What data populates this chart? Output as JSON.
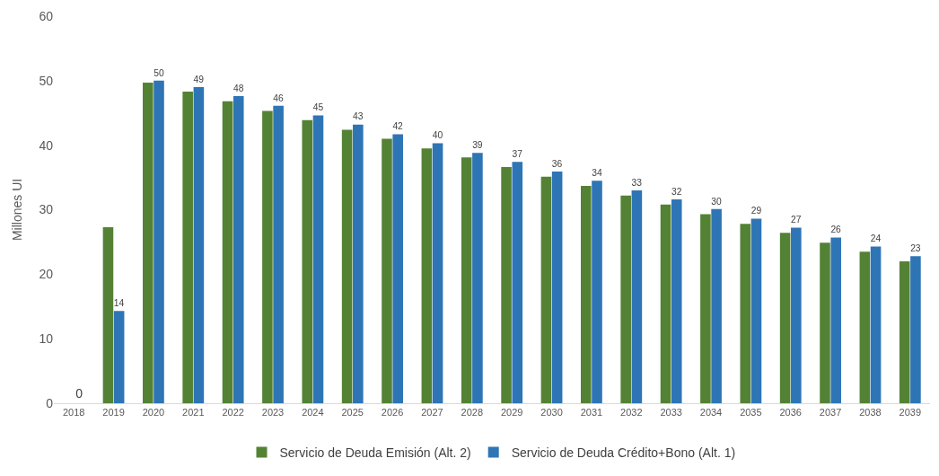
{
  "chart_data": {
    "type": "bar",
    "ylabel": "Millones UI",
    "categories": [
      "2018",
      "2019",
      "2020",
      "2021",
      "2022",
      "2023",
      "2024",
      "2025",
      "2026",
      "2027",
      "2028",
      "2029",
      "2030",
      "2031",
      "2032",
      "2033",
      "2034",
      "2035",
      "2036",
      "2037",
      "2038",
      "2039"
    ],
    "series": [
      {
        "name": "Servicio de Deuda Emisión (Alt. 2)",
        "color": "#548235",
        "values": [
          0,
          27.3,
          49.7,
          48.3,
          46.8,
          45.3,
          43.9,
          42.4,
          41.0,
          39.5,
          38.1,
          36.6,
          35.1,
          33.7,
          32.2,
          30.8,
          29.3,
          27.8,
          26.4,
          24.9,
          23.5,
          22.0
        ]
      },
      {
        "name": "Servicio de Deuda Crédito+Bono (Alt. 1)",
        "color": "#2e75b6",
        "values": [
          0,
          14.3,
          50.0,
          49.0,
          47.6,
          46.1,
          44.6,
          43.2,
          41.7,
          40.3,
          38.8,
          37.4,
          35.9,
          34.5,
          33.0,
          31.6,
          30.1,
          28.6,
          27.2,
          25.7,
          24.3,
          22.8
        ],
        "value_labels": [
          "0",
          "14",
          "50",
          "49",
          "48",
          "46",
          "45",
          "43",
          "42",
          "40",
          "39",
          "37",
          "36",
          "34",
          "33",
          "32",
          "30",
          "29",
          "27",
          "26",
          "24",
          "23"
        ]
      }
    ],
    "ylim": [
      0,
      60
    ],
    "yticks": [
      0,
      10,
      20,
      30,
      40,
      50,
      60
    ],
    "grid": false,
    "legend": "bottom"
  }
}
